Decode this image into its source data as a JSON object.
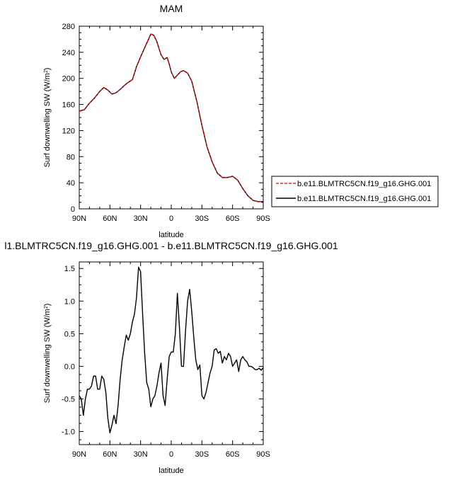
{
  "chart_data": [
    {
      "type": "line",
      "title": "MAM",
      "xlabel": "latitude",
      "ylabel": "Surf downwelling SW (W/m",
      "ylabel_sup": "2",
      "ylabel_close": ")",
      "xlim": [
        90,
        -90
      ],
      "ylim": [
        0,
        280
      ],
      "xticks": [
        90,
        60,
        30,
        0,
        -30,
        -60,
        -90
      ],
      "xticklabels": [
        "90N",
        "60N",
        "30N",
        "0",
        "30S",
        "60S",
        "90S"
      ],
      "yticks": [
        0,
        40,
        80,
        120,
        160,
        200,
        240,
        280
      ],
      "yticklabels": [
        "0",
        "40",
        "80",
        "120",
        "160",
        "200",
        "240",
        "280"
      ],
      "legend": "right",
      "series": [
        {
          "name": "b.e11.BLMTRC5CN.f19_g16.GHG.001",
          "color": "#e00000",
          "dash": "dashed",
          "x": [
            90,
            85,
            80,
            75,
            70,
            66,
            62,
            58,
            54,
            50,
            46,
            42,
            38,
            34,
            30,
            26,
            22,
            20,
            17,
            14,
            10,
            7,
            4,
            2,
            0,
            -3,
            -6,
            -9,
            -12,
            -16,
            -20,
            -25,
            -30,
            -35,
            -40,
            -45,
            -50,
            -55,
            -60,
            -65,
            -70,
            -75,
            -80,
            -85,
            -90
          ],
          "y": [
            150,
            152,
            162,
            170,
            180,
            186,
            182,
            176,
            178,
            183,
            189,
            194,
            198,
            218,
            233,
            247,
            261,
            268,
            266,
            256,
            236,
            229,
            232,
            222,
            210,
            200,
            205,
            210,
            212,
            208,
            196,
            165,
            128,
            95,
            72,
            55,
            48,
            48,
            50,
            44,
            31,
            20,
            13,
            11,
            11
          ]
        },
        {
          "name": "b.e11.BLMTRC5CN.f19_g16.GHG.001",
          "color": "#000000",
          "dash": "solid",
          "x": [
            90,
            85,
            80,
            75,
            70,
            66,
            62,
            58,
            54,
            50,
            46,
            42,
            38,
            34,
            30,
            26,
            22,
            20,
            17,
            14,
            10,
            7,
            4,
            2,
            0,
            -3,
            -6,
            -9,
            -12,
            -16,
            -20,
            -25,
            -30,
            -35,
            -40,
            -45,
            -50,
            -55,
            -60,
            -65,
            -70,
            -75,
            -80,
            -85,
            -90
          ],
          "y": [
            150,
            152,
            162,
            170,
            180,
            186,
            182,
            176,
            178,
            183,
            189,
            194,
            198,
            218,
            233,
            247,
            261,
            268,
            266,
            256,
            236,
            229,
            232,
            222,
            210,
            200,
            205,
            210,
            212,
            208,
            196,
            165,
            128,
            95,
            72,
            55,
            48,
            48,
            50,
            44,
            31,
            20,
            13,
            11,
            11
          ]
        }
      ]
    },
    {
      "type": "line",
      "title": "l1.BLMTRC5CN.f19_g16.GHG.001 - b.e11.BLMTRC5CN.f19_g16.GHG.001",
      "xlabel": "latitude",
      "ylabel": "Surf downwelling SW (W/m",
      "ylabel_sup": "2",
      "ylabel_close": ")",
      "xlim": [
        90,
        -90
      ],
      "ylim": [
        -1.2,
        1.6
      ],
      "xticks": [
        90,
        60,
        30,
        0,
        -30,
        -60,
        -90
      ],
      "xticklabels": [
        "90N",
        "60N",
        "30N",
        "0",
        "30S",
        "60S",
        "90S"
      ],
      "yticks": [
        -1.0,
        -0.5,
        0.0,
        0.5,
        1.0,
        1.5
      ],
      "yticklabels": [
        "-1.0",
        "-0.5",
        "0.0",
        "0.5",
        "1.0",
        "1.5"
      ],
      "series": [
        {
          "color": "#000000",
          "x": [
            90,
            88,
            86,
            84,
            82,
            80,
            78,
            76,
            74,
            72,
            70,
            68,
            66,
            64,
            62,
            60,
            58,
            56,
            54,
            52,
            50,
            48,
            46,
            44,
            42,
            40,
            38,
            36,
            34,
            32,
            30,
            28,
            26,
            24,
            22,
            20,
            18,
            16,
            14,
            12,
            10,
            8,
            6,
            4,
            2,
            0,
            -2,
            -4,
            -6,
            -8,
            -10,
            -12,
            -14,
            -16,
            -18,
            -20,
            -22,
            -24,
            -26,
            -28,
            -30,
            -32,
            -34,
            -36,
            -38,
            -40,
            -42,
            -44,
            -46,
            -48,
            -50,
            -52,
            -54,
            -56,
            -58,
            -60,
            -62,
            -64,
            -66,
            -68,
            -70,
            -72,
            -74,
            -76,
            -78,
            -80,
            -82,
            -84,
            -86,
            -88,
            -90
          ],
          "y": [
            -0.45,
            -0.5,
            -0.75,
            -0.5,
            -0.35,
            -0.35,
            -0.3,
            -0.15,
            -0.15,
            -0.35,
            -0.35,
            -0.15,
            -0.2,
            -0.4,
            -0.8,
            -1.02,
            -0.9,
            -0.75,
            -0.88,
            -0.6,
            -0.2,
            0.1,
            0.3,
            0.48,
            0.4,
            0.5,
            0.68,
            0.8,
            1.05,
            1.52,
            1.45,
            0.8,
            0.2,
            -0.25,
            -0.35,
            -0.62,
            -0.5,
            -0.45,
            -0.3,
            -0.1,
            0.05,
            -0.45,
            -0.6,
            -0.2,
            0.15,
            0.22,
            0.22,
            0.5,
            1.12,
            0.6,
            0.0,
            0.0,
            0.55,
            1.0,
            1.18,
            0.85,
            0.45,
            0.1,
            -0.05,
            0.02,
            -0.45,
            -0.5,
            -0.4,
            -0.25,
            -0.1,
            0.0,
            0.25,
            0.27,
            0.2,
            0.23,
            0.05,
            0.15,
            0.1,
            0.2,
            0.15,
            0.0,
            0.05,
            0.1,
            -0.08,
            0.1,
            0.15,
            0.1,
            0.07,
            0.0,
            0.0,
            -0.02,
            -0.05,
            -0.05,
            -0.03,
            -0.06,
            -0.02
          ]
        }
      ]
    }
  ]
}
